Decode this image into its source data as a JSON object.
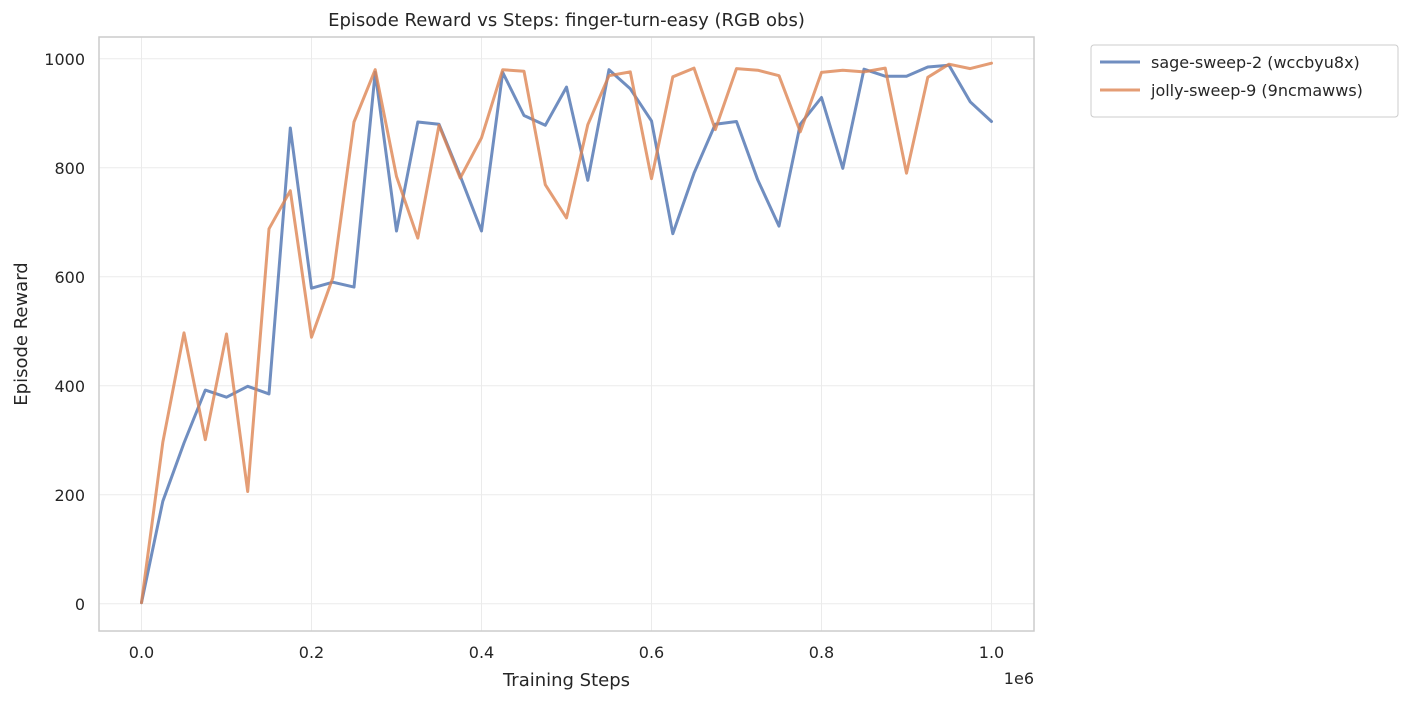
{
  "chart_data": {
    "type": "line",
    "title": "Episode Reward vs Steps: finger-turn-easy (RGB obs)",
    "xlabel": "Training Steps",
    "ylabel": "Episode Reward",
    "x_offset_label": "1e6",
    "xlim": [
      -0.05,
      1.05
    ],
    "ylim": [
      -50,
      1040
    ],
    "x_ticks": [
      0.0,
      0.2,
      0.4,
      0.6,
      0.8,
      1.0
    ],
    "x_tick_labels": [
      "0.0",
      "0.2",
      "0.4",
      "0.6",
      "0.8",
      "1.0"
    ],
    "y_ticks": [
      0,
      200,
      400,
      600,
      800,
      1000
    ],
    "y_tick_labels": [
      "0",
      "200",
      "400",
      "600",
      "800",
      "1000"
    ],
    "grid": true,
    "legend_position": "outside-top-right",
    "x": [
      0.0,
      0.025,
      0.05,
      0.075,
      0.1,
      0.125,
      0.15,
      0.175,
      0.2,
      0.225,
      0.25,
      0.275,
      0.3,
      0.325,
      0.35,
      0.375,
      0.4,
      0.425,
      0.45,
      0.475,
      0.5,
      0.525,
      0.55,
      0.575,
      0.6,
      0.625,
      0.65,
      0.675,
      0.7,
      0.725,
      0.75,
      0.775,
      0.8,
      0.825,
      0.85,
      0.875,
      0.9,
      0.925,
      0.95,
      0.975,
      1.0
    ],
    "series": [
      {
        "name": "sage-sweep-2 (wccbyu8x)",
        "color": "#4c72b0",
        "values": [
          2,
          188,
          295,
          392,
          379,
          399,
          385,
          873,
          579,
          590,
          581,
          975,
          684,
          884,
          880,
          785,
          684,
          975,
          896,
          878,
          948,
          777,
          980,
          945,
          886,
          679,
          790,
          880,
          885,
          778,
          693,
          880,
          929,
          799,
          981,
          968,
          968,
          985,
          988,
          921,
          885
        ]
      },
      {
        "name": "jolly-sweep-9 (9ncmawws)",
        "color": "#dd8452",
        "values": [
          2,
          296,
          497,
          301,
          495,
          206,
          688,
          758,
          489,
          598,
          884,
          980,
          784,
          671,
          878,
          781,
          855,
          980,
          977,
          769,
          708,
          879,
          969,
          976,
          780,
          967,
          983,
          870,
          982,
          979,
          969,
          866,
          975,
          979,
          976,
          983,
          790,
          966,
          990,
          982,
          992
        ]
      }
    ]
  }
}
